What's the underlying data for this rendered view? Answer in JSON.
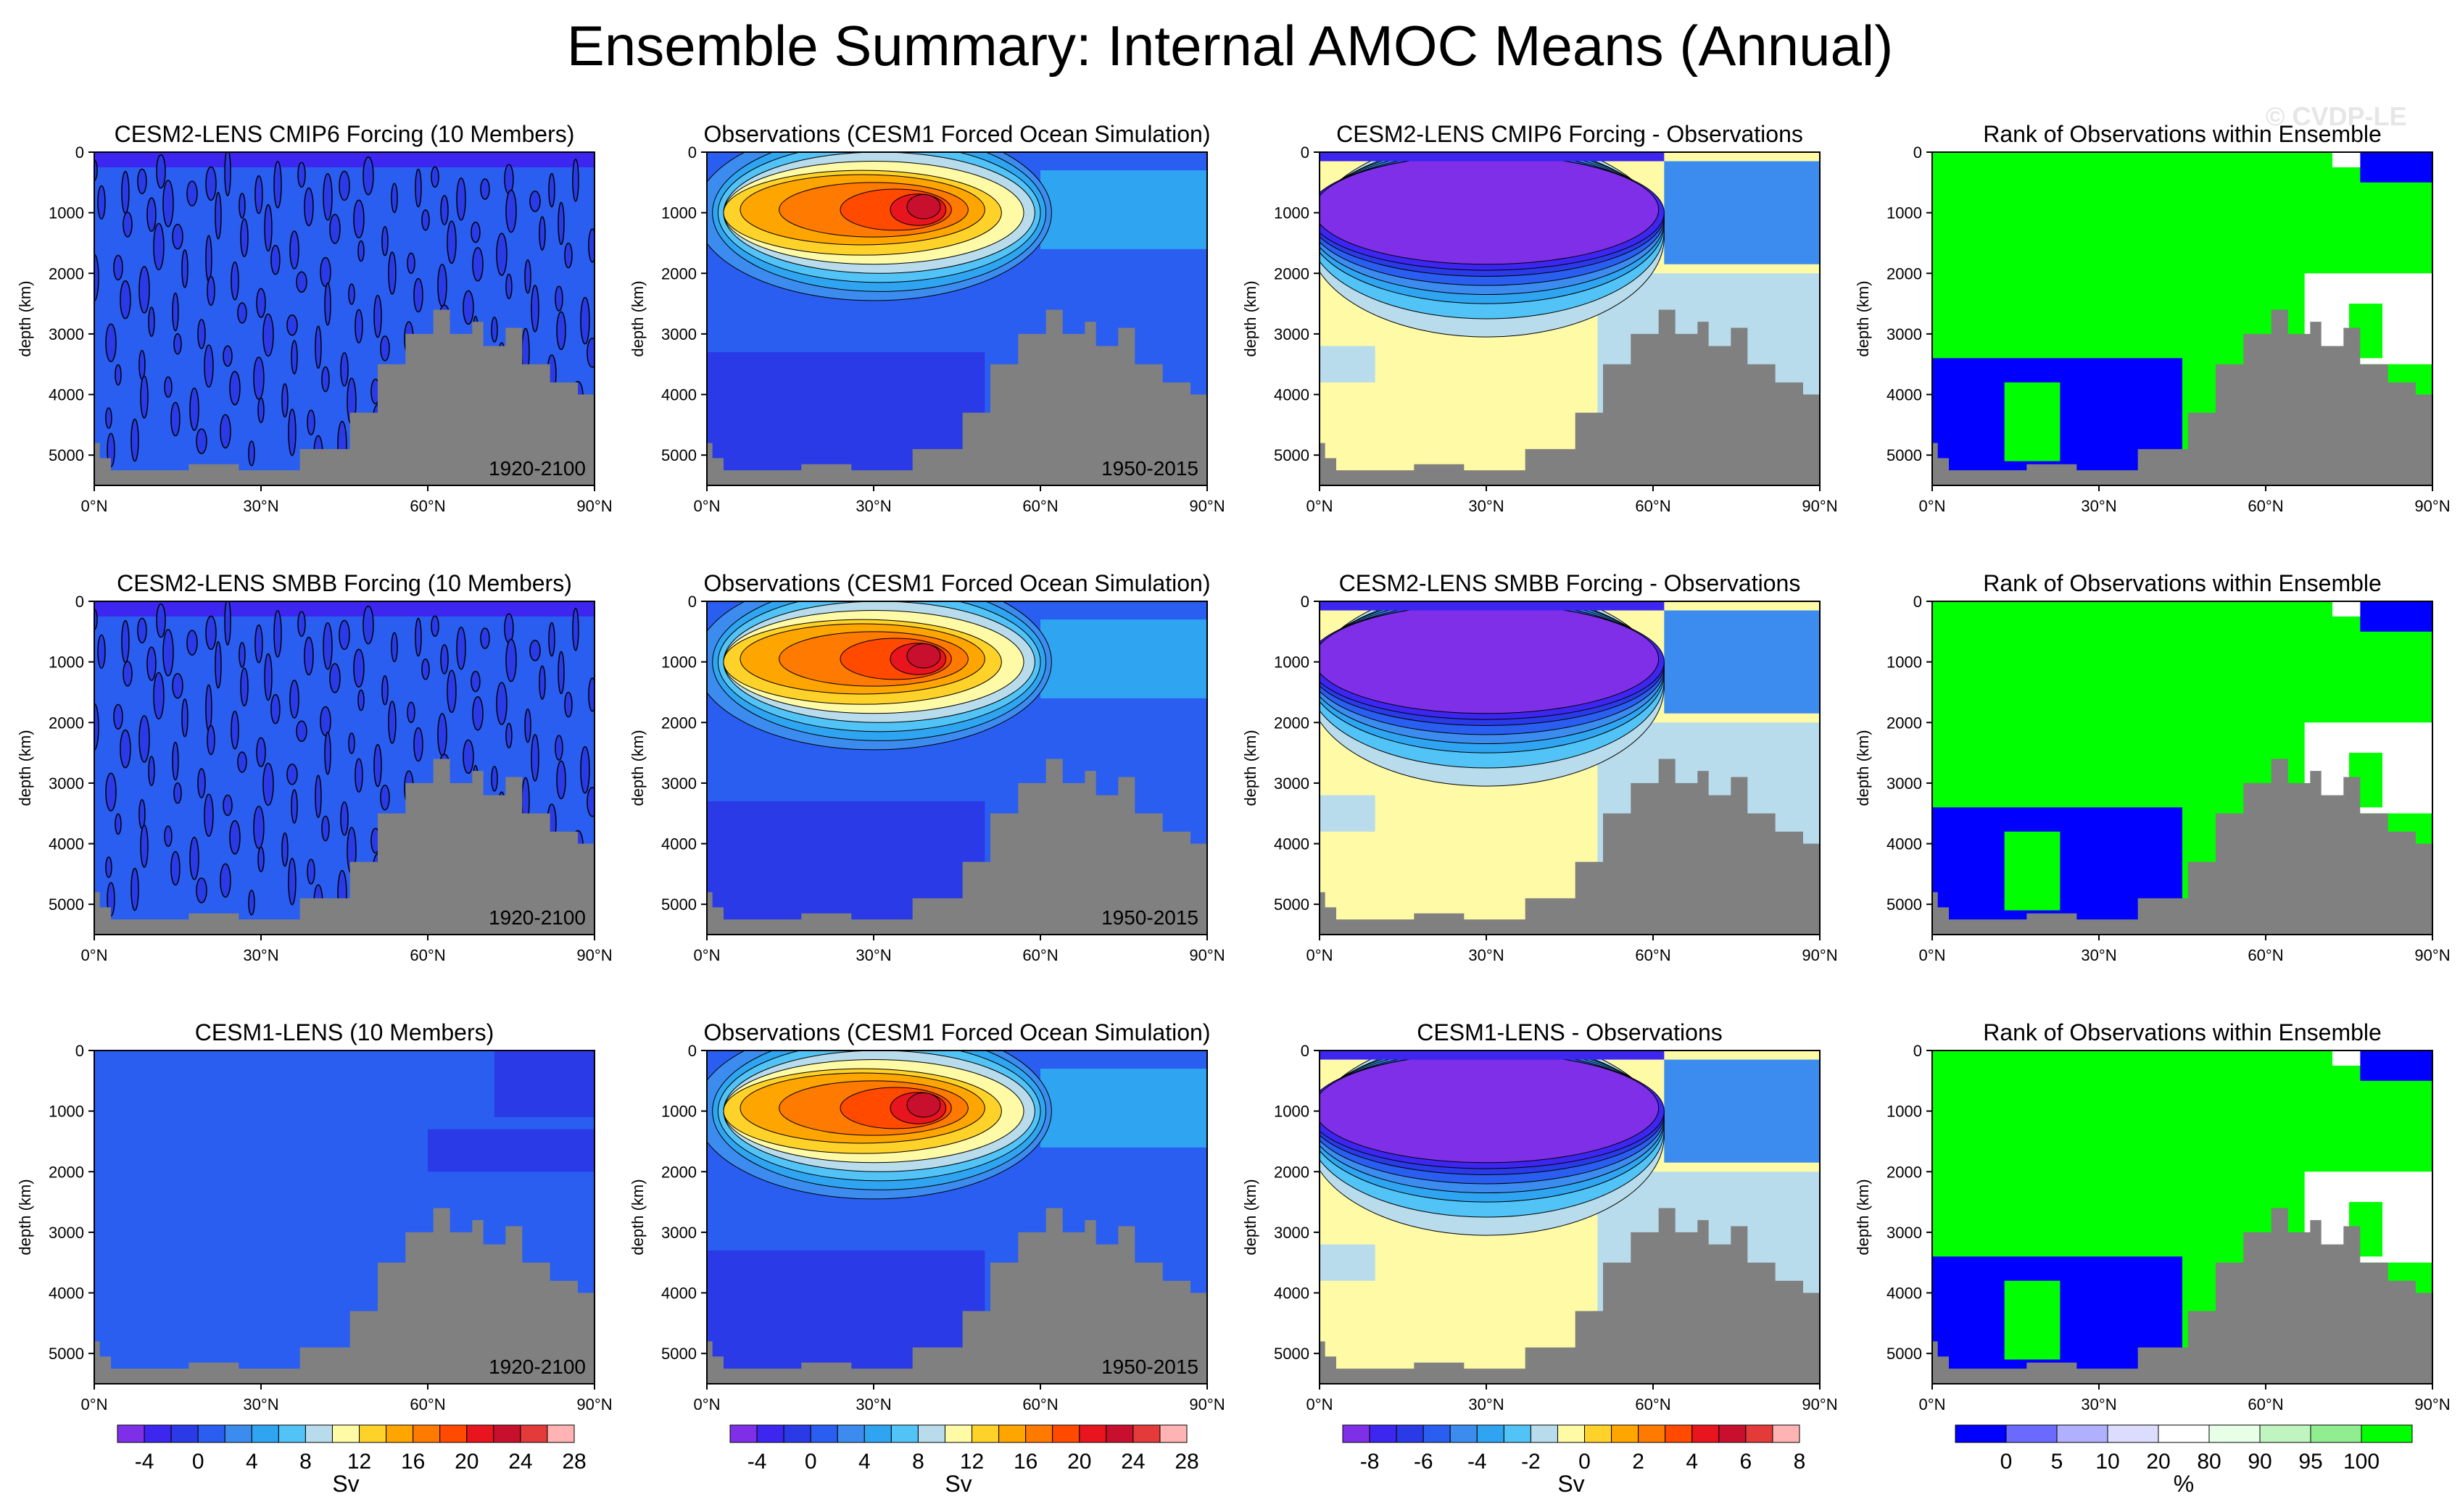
{
  "title": "Ensemble Summary: Internal AMOC Means (Annual)",
  "watermark": "© CVDP-LE",
  "axes": {
    "ylabel": "depth (km)",
    "xticks": [
      "0°N",
      "30°N",
      "60°N",
      "90°N"
    ],
    "yticks": [
      "0",
      "1000",
      "2000",
      "3000",
      "4000",
      "5000"
    ]
  },
  "colors": {
    "land": "#808080",
    "sv_scale": [
      "#7f2fe8",
      "#3c26f0",
      "#2a3ae6",
      "#2a5ef0",
      "#3c8cf0",
      "#2fa5f2",
      "#52c3f6",
      "#b8dcec",
      "#fffaa6",
      "#ffd22a",
      "#ffa500",
      "#ff7a00",
      "#ff4a00",
      "#e8141e",
      "#c8102e",
      "#e53a3a",
      "#ffb3b3"
    ],
    "rank_scale": [
      "#0000ff",
      "#6a6aff",
      "#b0b0ff",
      "#dcdcff",
      "#ffffff",
      "#e6ffe6",
      "#c0f5c0",
      "#90ee90",
      "#00ff00"
    ]
  },
  "chart_data": [
    {
      "type": "heatmap",
      "panel": "r1c1",
      "title": "CESM2-LENS CMIP6 Forcing (10 Members)",
      "period": "1920-2100",
      "field": "noise",
      "xlabel": "",
      "ylabel": "depth (km)",
      "xlim": [
        0,
        90
      ],
      "ylim": [
        5500,
        0
      ]
    },
    {
      "type": "heatmap",
      "panel": "r1c2",
      "title": "Observations (CESM1 Forced Ocean Simulation)",
      "period": "1950-2015",
      "field": "obs",
      "xlabel": "",
      "ylabel": "depth (km)",
      "xlim": [
        0,
        90
      ],
      "ylim": [
        5500,
        0
      ]
    },
    {
      "type": "heatmap",
      "panel": "r1c3",
      "title": "CESM2-LENS CMIP6 Forcing - Observations",
      "period": "",
      "field": "diff",
      "xlabel": "",
      "ylabel": "depth (km)",
      "xlim": [
        0,
        90
      ],
      "ylim": [
        5500,
        0
      ]
    },
    {
      "type": "heatmap",
      "panel": "r1c4",
      "title": "Rank of Observations within Ensemble",
      "period": "",
      "field": "rank",
      "xlabel": "",
      "ylabel": "depth (km)",
      "xlim": [
        0,
        90
      ],
      "ylim": [
        5500,
        0
      ]
    },
    {
      "type": "heatmap",
      "panel": "r2c1",
      "title": "CESM2-LENS SMBB Forcing (10 Members)",
      "period": "1920-2100",
      "field": "noise",
      "xlabel": "",
      "ylabel": "depth (km)",
      "xlim": [
        0,
        90
      ],
      "ylim": [
        5500,
        0
      ]
    },
    {
      "type": "heatmap",
      "panel": "r2c2",
      "title": "Observations (CESM1 Forced Ocean Simulation)",
      "period": "1950-2015",
      "field": "obs",
      "xlabel": "",
      "ylabel": "depth (km)",
      "xlim": [
        0,
        90
      ],
      "ylim": [
        5500,
        0
      ]
    },
    {
      "type": "heatmap",
      "panel": "r2c3",
      "title": "CESM2-LENS SMBB Forcing - Observations",
      "period": "",
      "field": "diff",
      "xlabel": "",
      "ylabel": "depth (km)",
      "xlim": [
        0,
        90
      ],
      "ylim": [
        5500,
        0
      ]
    },
    {
      "type": "heatmap",
      "panel": "r2c4",
      "title": "Rank of Observations within Ensemble",
      "period": "",
      "field": "rank",
      "xlabel": "",
      "ylabel": "depth (km)",
      "xlim": [
        0,
        90
      ],
      "ylim": [
        5500,
        0
      ]
    },
    {
      "type": "heatmap",
      "panel": "r3c1",
      "title": "CESM1-LENS (10 Members)",
      "period": "1920-2100",
      "field": "flat",
      "xlabel": "",
      "ylabel": "depth (km)",
      "xlim": [
        0,
        90
      ],
      "ylim": [
        5500,
        0
      ]
    },
    {
      "type": "heatmap",
      "panel": "r3c2",
      "title": "Observations (CESM1 Forced Ocean Simulation)",
      "period": "1950-2015",
      "field": "obs",
      "xlabel": "",
      "ylabel": "depth (km)",
      "xlim": [
        0,
        90
      ],
      "ylim": [
        5500,
        0
      ]
    },
    {
      "type": "heatmap",
      "panel": "r3c3",
      "title": "CESM1-LENS - Observations",
      "period": "",
      "field": "diff",
      "xlabel": "",
      "ylabel": "depth (km)",
      "xlim": [
        0,
        90
      ],
      "ylim": [
        5500,
        0
      ]
    },
    {
      "type": "heatmap",
      "panel": "r3c4",
      "title": "Rank of Observations within Ensemble",
      "period": "",
      "field": "rank",
      "xlabel": "",
      "ylabel": "depth (km)",
      "xlim": [
        0,
        90
      ],
      "ylim": [
        5500,
        0
      ]
    }
  ],
  "colorbars": [
    {
      "ticks": [
        "-4",
        "0",
        "4",
        "8",
        "12",
        "16",
        "20",
        "24",
        "28"
      ],
      "unit": "Sv",
      "n_boxes": 17
    },
    {
      "ticks": [
        "-4",
        "0",
        "4",
        "8",
        "12",
        "16",
        "20",
        "24",
        "28"
      ],
      "unit": "Sv",
      "n_boxes": 17
    },
    {
      "ticks": [
        "-8",
        "-6",
        "-4",
        "-2",
        "0",
        "2",
        "4",
        "6",
        "8"
      ],
      "unit": "Sv",
      "n_boxes": 17
    },
    {
      "ticks": [
        "0",
        "5",
        "10",
        "20",
        "80",
        "90",
        "95",
        "100"
      ],
      "unit": "%",
      "n_boxes": 9
    }
  ]
}
